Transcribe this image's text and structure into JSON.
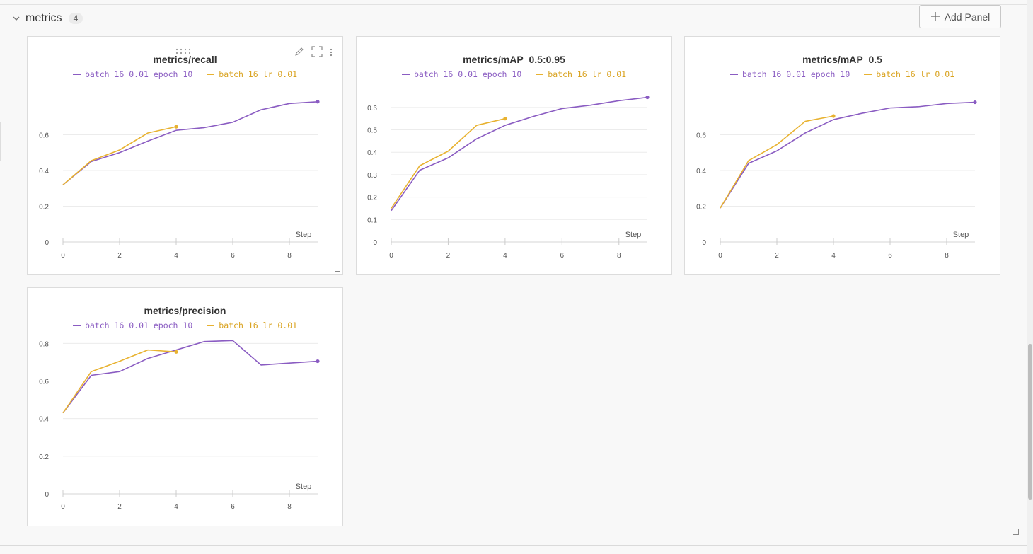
{
  "section": {
    "title": "metrics",
    "count": "4",
    "add_panel_label": "Add Panel"
  },
  "icons": {
    "collapse": "chevron-down-icon",
    "add": "plus-icon",
    "edit": "pencil-icon",
    "fullscreen": "fullscreen-icon",
    "menu": "kebab-menu-icon",
    "drag": "drag-handle-icon"
  },
  "colors": {
    "series_purple": "#8a5cc2",
    "series_orange": "#e8b230"
  },
  "panels": [
    {
      "title": "metrics/recall",
      "step_label": "Step"
    },
    {
      "title": "metrics/mAP_0.5:0.95",
      "step_label": "Step"
    },
    {
      "title": "metrics/mAP_0.5",
      "step_label": "Step"
    },
    {
      "title": "metrics/precision",
      "step_label": "Step"
    }
  ],
  "chart_data": [
    {
      "type": "line",
      "title": "metrics/recall",
      "xlabel": "Step",
      "xlim": [
        0,
        9
      ],
      "ylim": [
        0,
        0.8
      ],
      "xticks": [
        "0",
        "2",
        "4",
        "6",
        "8"
      ],
      "yticks": [
        "0",
        "0.2",
        "0.4",
        "0.6"
      ],
      "series": [
        {
          "name": "batch_16_0.01_epoch_10",
          "color": "#8a5cc2",
          "x": [
            0,
            1,
            2,
            3,
            4,
            5,
            6,
            7,
            8,
            9
          ],
          "y": [
            0.32,
            0.45,
            0.5,
            0.565,
            0.625,
            0.64,
            0.67,
            0.74,
            0.775,
            0.785
          ]
        },
        {
          "name": "batch_16_lr_0.01",
          "color": "#e8b230",
          "x": [
            0,
            1,
            2,
            3,
            4
          ],
          "y": [
            0.32,
            0.455,
            0.515,
            0.61,
            0.645
          ]
        }
      ]
    },
    {
      "type": "line",
      "title": "metrics/mAP_0.5:0.95",
      "xlabel": "Step",
      "xlim": [
        0,
        9
      ],
      "ylim": [
        0,
        0.65
      ],
      "xticks": [
        "0",
        "2",
        "4",
        "6",
        "8"
      ],
      "yticks": [
        "0",
        "0.1",
        "0.2",
        "0.3",
        "0.4",
        "0.5",
        "0.6"
      ],
      "series": [
        {
          "name": "batch_16_0.01_epoch_10",
          "color": "#8a5cc2",
          "x": [
            0,
            1,
            2,
            3,
            4,
            5,
            6,
            7,
            8,
            9
          ],
          "y": [
            0.14,
            0.32,
            0.375,
            0.46,
            0.52,
            0.56,
            0.595,
            0.61,
            0.63,
            0.645
          ]
        },
        {
          "name": "batch_16_lr_0.01",
          "color": "#e8b230",
          "x": [
            0,
            1,
            2,
            3,
            4
          ],
          "y": [
            0.15,
            0.34,
            0.405,
            0.52,
            0.55
          ]
        }
      ]
    },
    {
      "type": "line",
      "title": "metrics/mAP_0.5",
      "xlabel": "Step",
      "xlim": [
        0,
        9
      ],
      "ylim": [
        0,
        0.8
      ],
      "xticks": [
        "0",
        "2",
        "4",
        "6",
        "8"
      ],
      "yticks": [
        "0",
        "0.2",
        "0.4",
        "0.6"
      ],
      "series": [
        {
          "name": "batch_16_0.01_epoch_10",
          "color": "#8a5cc2",
          "x": [
            0,
            1,
            2,
            3,
            4,
            5,
            6,
            7,
            8,
            9
          ],
          "y": [
            0.19,
            0.44,
            0.51,
            0.61,
            0.685,
            0.72,
            0.75,
            0.757,
            0.775,
            0.782
          ]
        },
        {
          "name": "batch_16_lr_0.01",
          "color": "#e8b230",
          "x": [
            0,
            1,
            2,
            3,
            4
          ],
          "y": [
            0.19,
            0.455,
            0.545,
            0.675,
            0.705
          ]
        }
      ]
    },
    {
      "type": "line",
      "title": "metrics/precision",
      "xlabel": "Step",
      "xlim": [
        0,
        9
      ],
      "ylim": [
        0,
        0.82
      ],
      "xticks": [
        "0",
        "2",
        "4",
        "6",
        "8"
      ],
      "yticks": [
        "0",
        "0.2",
        "0.4",
        "0.6",
        "0.8"
      ],
      "series": [
        {
          "name": "batch_16_0.01_epoch_10",
          "color": "#8a5cc2",
          "x": [
            0,
            1,
            2,
            3,
            4,
            5,
            6,
            7,
            8,
            9
          ],
          "y": [
            0.43,
            0.63,
            0.65,
            0.72,
            0.765,
            0.81,
            0.815,
            0.685,
            0.695,
            0.705
          ]
        },
        {
          "name": "batch_16_lr_0.01",
          "color": "#e8b230",
          "x": [
            0,
            1,
            2,
            3,
            4
          ],
          "y": [
            0.43,
            0.65,
            0.705,
            0.765,
            0.755
          ]
        }
      ]
    }
  ]
}
